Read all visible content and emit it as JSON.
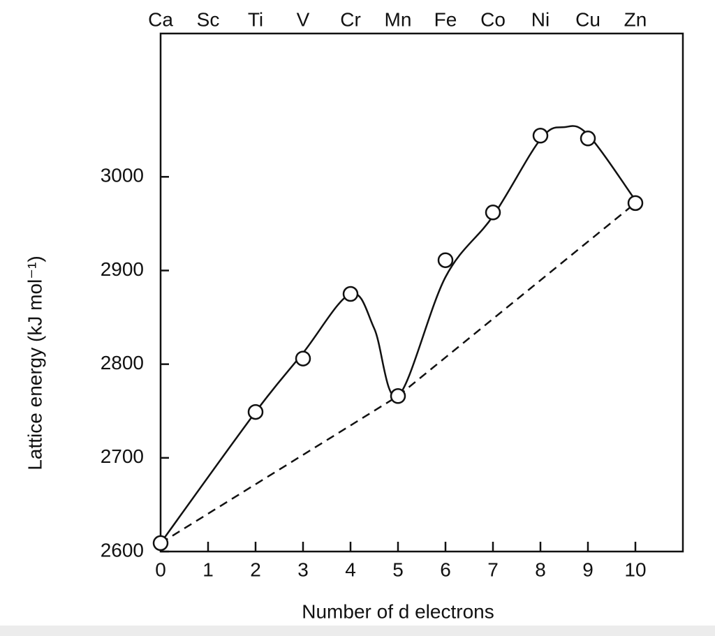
{
  "chart_data": {
    "type": "line",
    "xlabel": "Number of d electrons",
    "ylabel": "Lattice energy  (kJ  mol⁻¹)",
    "top_labels": [
      "Ca",
      "Sc",
      "Ti",
      "V",
      "Cr",
      "Mn",
      "Fe",
      "Co",
      "Ni",
      "Cu",
      "Zn"
    ],
    "xlim": [
      0,
      11
    ],
    "ylim": [
      2600,
      3153
    ],
    "xticks": [
      0,
      1,
      2,
      3,
      4,
      5,
      6,
      7,
      8,
      9,
      10
    ],
    "yticks": [
      2600,
      2700,
      2800,
      2900,
      3000
    ],
    "series": [
      {
        "style": "markers",
        "color": "#111",
        "x": [
          0,
          2,
          3,
          4,
          5,
          6,
          7,
          8,
          9,
          10
        ],
        "values": [
          2609,
          2749,
          2806,
          2875,
          2766,
          2911,
          2962,
          3044,
          3041,
          2972
        ]
      },
      {
        "style": "smooth",
        "color": "#111",
        "x": [
          0,
          2,
          3,
          4,
          4.5,
          5,
          6,
          7,
          8,
          8.5,
          9,
          10
        ],
        "values": [
          2609,
          2749,
          2812,
          2875,
          2838,
          2766,
          2893,
          2958,
          3040,
          3053,
          3045,
          2975
        ]
      },
      {
        "style": "dashed",
        "color": "#111",
        "x": [
          0,
          5,
          10
        ],
        "values": [
          2609,
          2766,
          2972
        ]
      }
    ]
  }
}
